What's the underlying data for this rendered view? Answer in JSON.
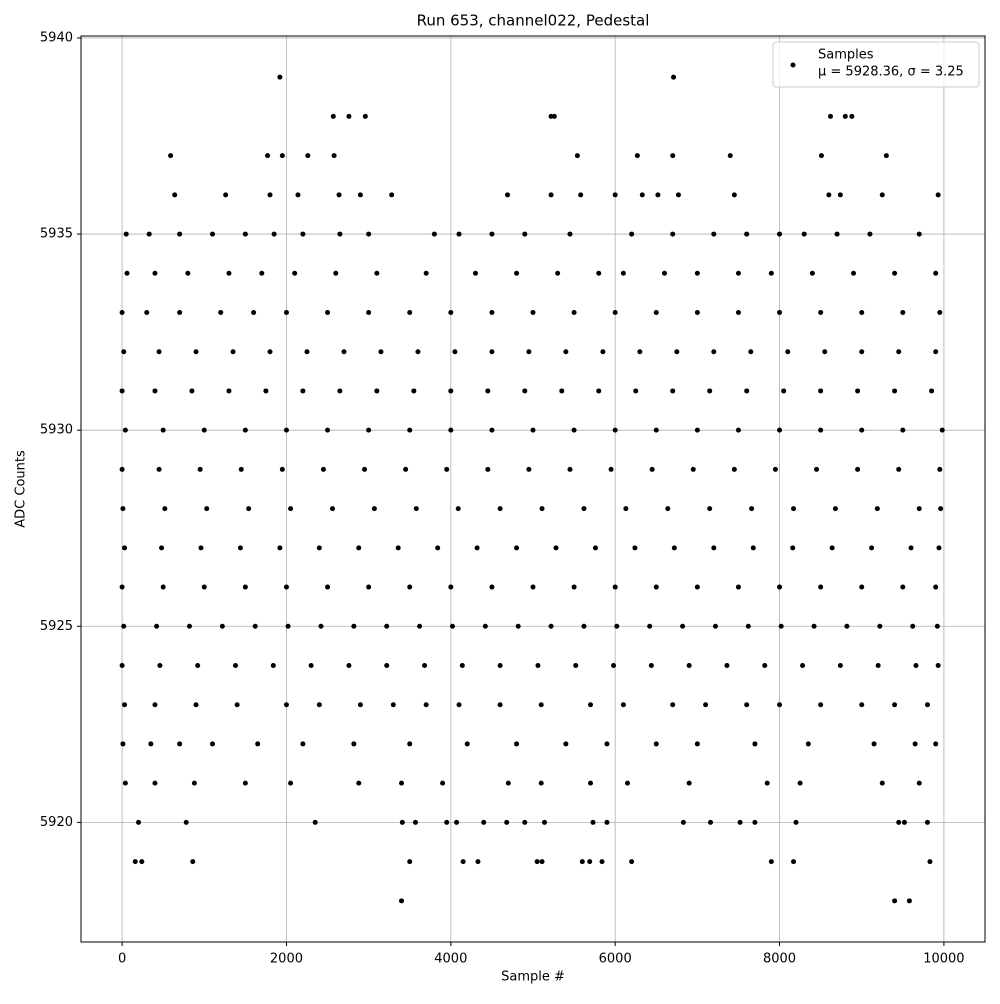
{
  "chart_data": {
    "type": "scatter",
    "title": "Run 653, channel022, Pedestal",
    "x_label": "Sample #",
    "y_label": "ADC Counts",
    "xlim": [
      -500,
      10500
    ],
    "ylim": [
      5916.95,
      5940.05
    ],
    "xticks": [
      0,
      2000,
      4000,
      6000,
      8000,
      10000
    ],
    "yticks": [
      5920,
      5925,
      5930,
      5935,
      5940
    ],
    "grid": true,
    "legend_position": "upper right",
    "series": [
      {
        "name": "Samples",
        "label": "μ = 5928.36, σ = 3.25",
        "color": "#000000",
        "x": [
          1920,
          6710,
          2570,
          2760,
          2960,
          5220,
          5260,
          8620,
          8800,
          8880,
          590,
          1770,
          1950,
          2260,
          2580,
          5540,
          6270,
          6700,
          7400,
          8510,
          9300,
          640,
          1260,
          1800,
          2140,
          2640,
          2900,
          3280,
          4690,
          5220,
          5580,
          6000,
          6330,
          6520,
          6770,
          7450,
          8600,
          8740,
          9250,
          9930,
          50,
          330,
          700,
          1100,
          1500,
          1850,
          2200,
          2650,
          3000,
          3800,
          4100,
          4500,
          4900,
          5450,
          6200,
          6700,
          7200,
          7600,
          8000,
          8300,
          8700,
          9100,
          9700,
          60,
          400,
          800,
          1300,
          1700,
          2100,
          2600,
          3100,
          3700,
          4300,
          4800,
          5300,
          5800,
          6100,
          6600,
          7000,
          7500,
          7900,
          8400,
          8900,
          9400,
          9900,
          0,
          300,
          700,
          1200,
          1600,
          2000,
          2500,
          3000,
          3500,
          4000,
          4500,
          5000,
          5500,
          6000,
          6500,
          7000,
          7500,
          8000,
          8500,
          9000,
          9500,
          9950,
          20,
          450,
          900,
          1350,
          1800,
          2250,
          2700,
          3150,
          3600,
          4050,
          4500,
          4950,
          5400,
          5850,
          6300,
          6750,
          7200,
          7650,
          8100,
          8550,
          9000,
          9450,
          9900,
          0,
          400,
          850,
          1300,
          1750,
          2200,
          2650,
          3100,
          3550,
          4000,
          4450,
          4900,
          5350,
          5800,
          6250,
          6700,
          7150,
          7600,
          8050,
          8500,
          8950,
          9400,
          9850,
          40,
          500,
          1000,
          1500,
          2000,
          2500,
          3000,
          3500,
          4000,
          4500,
          5000,
          5500,
          6000,
          6500,
          7000,
          7500,
          8000,
          8500,
          9000,
          9500,
          9980,
          0,
          450,
          950,
          1450,
          1950,
          2450,
          2950,
          3450,
          3950,
          4450,
          4950,
          5450,
          5950,
          6450,
          6950,
          7450,
          7950,
          8450,
          8950,
          9450,
          9950,
          10,
          520,
          1030,
          1540,
          2050,
          2560,
          3070,
          3580,
          4090,
          4600,
          5110,
          5620,
          6130,
          6640,
          7150,
          7660,
          8170,
          8680,
          9190,
          9700,
          9960,
          30,
          480,
          960,
          1440,
          1920,
          2400,
          2880,
          3360,
          3840,
          4320,
          4800,
          5280,
          5760,
          6240,
          6720,
          7200,
          7680,
          8160,
          8640,
          9120,
          9600,
          9940,
          0,
          500,
          1000,
          1500,
          2000,
          2500,
          3000,
          3500,
          4000,
          4500,
          5000,
          5500,
          6000,
          6500,
          7000,
          7500,
          8000,
          8500,
          9000,
          9500,
          9900,
          20,
          420,
          820,
          1220,
          1620,
          2020,
          2420,
          2820,
          3220,
          3620,
          4020,
          4420,
          4820,
          5220,
          5620,
          6020,
          6420,
          6820,
          7220,
          7620,
          8020,
          8420,
          8820,
          9220,
          9620,
          9920,
          0,
          460,
          920,
          1380,
          1840,
          2300,
          2760,
          3220,
          3680,
          4140,
          4600,
          5060,
          5520,
          5980,
          6440,
          6900,
          7360,
          7820,
          8280,
          8740,
          9200,
          9660,
          9930,
          30,
          400,
          900,
          1400,
          2000,
          2400,
          2900,
          3300,
          3700,
          4100,
          4600,
          5100,
          5700,
          6100,
          6700,
          7100,
          7600,
          8000,
          8500,
          9000,
          9400,
          9800,
          10,
          350,
          700,
          1100,
          1650,
          2200,
          2820,
          3500,
          4200,
          4800,
          5400,
          5900,
          6500,
          7000,
          7700,
          8350,
          9150,
          9650,
          9900,
          40,
          400,
          880,
          1500,
          2050,
          2880,
          3400,
          3900,
          4700,
          5100,
          5700,
          6150,
          6900,
          7850,
          8250,
          9250,
          9700,
          200,
          780,
          2350,
          3410,
          3570,
          3950,
          4070,
          4400,
          4680,
          4900,
          5140,
          5730,
          5900,
          6830,
          7160,
          7520,
          7700,
          8200,
          9450,
          9520,
          9800,
          160,
          240,
          860,
          3500,
          4150,
          4330,
          5050,
          5110,
          5600,
          5690,
          5840,
          6200,
          7900,
          8170,
          9830,
          3400,
          9400,
          9580
        ],
        "values": [
          5939,
          5939,
          5938,
          5938,
          5938,
          5938,
          5938,
          5938,
          5938,
          5938,
          5937,
          5937,
          5937,
          5937,
          5937,
          5937,
          5937,
          5937,
          5937,
          5937,
          5937,
          5936,
          5936,
          5936,
          5936,
          5936,
          5936,
          5936,
          5936,
          5936,
          5936,
          5936,
          5936,
          5936,
          5936,
          5936,
          5936,
          5936,
          5936,
          5936,
          5935,
          5935,
          5935,
          5935,
          5935,
          5935,
          5935,
          5935,
          5935,
          5935,
          5935,
          5935,
          5935,
          5935,
          5935,
          5935,
          5935,
          5935,
          5935,
          5935,
          5935,
          5935,
          5935,
          5934,
          5934,
          5934,
          5934,
          5934,
          5934,
          5934,
          5934,
          5934,
          5934,
          5934,
          5934,
          5934,
          5934,
          5934,
          5934,
          5934,
          5934,
          5934,
          5934,
          5934,
          5934,
          5933,
          5933,
          5933,
          5933,
          5933,
          5933,
          5933,
          5933,
          5933,
          5933,
          5933,
          5933,
          5933,
          5933,
          5933,
          5933,
          5933,
          5933,
          5933,
          5933,
          5933,
          5933,
          5932,
          5932,
          5932,
          5932,
          5932,
          5932,
          5932,
          5932,
          5932,
          5932,
          5932,
          5932,
          5932,
          5932,
          5932,
          5932,
          5932,
          5932,
          5932,
          5932,
          5932,
          5932,
          5932,
          5931,
          5931,
          5931,
          5931,
          5931,
          5931,
          5931,
          5931,
          5931,
          5931,
          5931,
          5931,
          5931,
          5931,
          5931,
          5931,
          5931,
          5931,
          5931,
          5931,
          5931,
          5931,
          5931,
          5930,
          5930,
          5930,
          5930,
          5930,
          5930,
          5930,
          5930,
          5930,
          5930,
          5930,
          5930,
          5930,
          5930,
          5930,
          5930,
          5930,
          5930,
          5930,
          5930,
          5930,
          5929,
          5929,
          5929,
          5929,
          5929,
          5929,
          5929,
          5929,
          5929,
          5929,
          5929,
          5929,
          5929,
          5929,
          5929,
          5929,
          5929,
          5929,
          5929,
          5929,
          5929,
          5928,
          5928,
          5928,
          5928,
          5928,
          5928,
          5928,
          5928,
          5928,
          5928,
          5928,
          5928,
          5928,
          5928,
          5928,
          5928,
          5928,
          5928,
          5928,
          5928,
          5928,
          5927,
          5927,
          5927,
          5927,
          5927,
          5927,
          5927,
          5927,
          5927,
          5927,
          5927,
          5927,
          5927,
          5927,
          5927,
          5927,
          5927,
          5927,
          5927,
          5927,
          5927,
          5927,
          5926,
          5926,
          5926,
          5926,
          5926,
          5926,
          5926,
          5926,
          5926,
          5926,
          5926,
          5926,
          5926,
          5926,
          5926,
          5926,
          5926,
          5926,
          5926,
          5926,
          5926,
          5925,
          5925,
          5925,
          5925,
          5925,
          5925,
          5925,
          5925,
          5925,
          5925,
          5925,
          5925,
          5925,
          5925,
          5925,
          5925,
          5925,
          5925,
          5925,
          5925,
          5925,
          5925,
          5925,
          5925,
          5925,
          5925,
          5924,
          5924,
          5924,
          5924,
          5924,
          5924,
          5924,
          5924,
          5924,
          5924,
          5924,
          5924,
          5924,
          5924,
          5924,
          5924,
          5924,
          5924,
          5924,
          5924,
          5924,
          5924,
          5924,
          5923,
          5923,
          5923,
          5923,
          5923,
          5923,
          5923,
          5923,
          5923,
          5923,
          5923,
          5923,
          5923,
          5923,
          5923,
          5923,
          5923,
          5923,
          5923,
          5923,
          5923,
          5923,
          5922,
          5922,
          5922,
          5922,
          5922,
          5922,
          5922,
          5922,
          5922,
          5922,
          5922,
          5922,
          5922,
          5922,
          5922,
          5922,
          5922,
          5922,
          5922,
          5921,
          5921,
          5921,
          5921,
          5921,
          5921,
          5921,
          5921,
          5921,
          5921,
          5921,
          5921,
          5921,
          5921,
          5921,
          5921,
          5921,
          5920,
          5920,
          5920,
          5920,
          5920,
          5920,
          5920,
          5920,
          5920,
          5920,
          5920,
          5920,
          5920,
          5920,
          5920,
          5920,
          5920,
          5920,
          5920,
          5920,
          5920,
          5919,
          5919,
          5919,
          5919,
          5919,
          5919,
          5919,
          5919,
          5919,
          5919,
          5919,
          5919,
          5919,
          5919,
          5919,
          5918,
          5918,
          5918
        ]
      }
    ]
  }
}
